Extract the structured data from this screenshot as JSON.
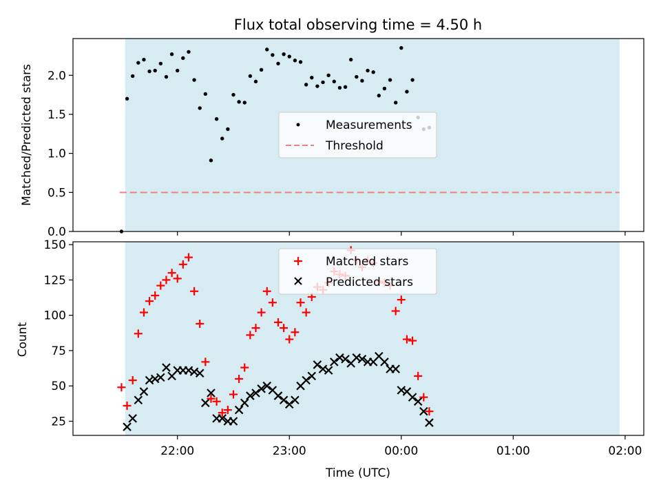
{
  "title": "Flux total observing time = 4.50 h",
  "chart_data": [
    {
      "type": "scatter",
      "panel": "top",
      "ylabel": "Matched/Predicted stars",
      "ylim": [
        0,
        2.47
      ],
      "yticks": [
        "0.0",
        "0.5",
        "1.0",
        "1.5",
        "2.0"
      ],
      "ytick_values": [
        0,
        0.5,
        1.0,
        1.5,
        2.0
      ],
      "grid": false,
      "legend_position": "center",
      "legend": [
        "Measurements",
        "Threshold"
      ],
      "shaded_span": {
        "start": "21:32",
        "end": "01:57",
        "color": "#add8e6"
      },
      "threshold": {
        "value": 0.5,
        "start": "21:29",
        "end": "01:57",
        "color": "#f08080"
      },
      "series": [
        {
          "name": "Measurements",
          "color": "#000000",
          "points": [
            [
              "21:30",
              0.0
            ],
            [
              "21:33",
              1.7
            ],
            [
              "21:36",
              1.99
            ],
            [
              "21:39",
              2.16
            ],
            [
              "21:42",
              2.2
            ],
            [
              "21:45",
              2.05
            ],
            [
              "21:48",
              2.06
            ],
            [
              "21:51",
              2.15
            ],
            [
              "21:54",
              1.98
            ],
            [
              "21:57",
              2.27
            ],
            [
              "22:00",
              2.06
            ],
            [
              "22:03",
              2.22
            ],
            [
              "22:06",
              2.3
            ],
            [
              "22:09",
              1.94
            ],
            [
              "22:12",
              1.58
            ],
            [
              "22:15",
              1.76
            ],
            [
              "22:18",
              0.91
            ],
            [
              "22:21",
              1.44
            ],
            [
              "22:24",
              1.19
            ],
            [
              "22:27",
              1.31
            ],
            [
              "22:30",
              1.75
            ],
            [
              "22:33",
              1.66
            ],
            [
              "22:36",
              1.65
            ],
            [
              "22:39",
              1.99
            ],
            [
              "22:42",
              1.92
            ],
            [
              "22:45",
              2.07
            ],
            [
              "22:48",
              2.33
            ],
            [
              "22:51",
              2.26
            ],
            [
              "22:54",
              2.15
            ],
            [
              "22:57",
              2.27
            ],
            [
              "23:00",
              2.24
            ],
            [
              "23:03",
              2.19
            ],
            [
              "23:06",
              2.17
            ],
            [
              "23:09",
              1.88
            ],
            [
              "23:12",
              1.97
            ],
            [
              "23:15",
              1.86
            ],
            [
              "23:18",
              1.91
            ],
            [
              "23:21",
              2.0
            ],
            [
              "23:24",
              1.92
            ],
            [
              "23:27",
              1.84
            ],
            [
              "23:30",
              1.85
            ],
            [
              "23:33",
              2.2
            ],
            [
              "23:36",
              1.98
            ],
            [
              "23:39",
              1.93
            ],
            [
              "23:42",
              2.06
            ],
            [
              "23:45",
              2.04
            ],
            [
              "23:48",
              1.74
            ],
            [
              "23:51",
              1.83
            ],
            [
              "23:54",
              1.94
            ],
            [
              "23:57",
              1.65
            ],
            [
              "00:00",
              2.35
            ],
            [
              "00:03",
              1.79
            ],
            [
              "00:06",
              1.94
            ],
            [
              "00:09",
              1.46
            ],
            [
              "00:12",
              1.31
            ],
            [
              "00:15",
              1.33
            ]
          ]
        }
      ]
    },
    {
      "type": "scatter",
      "panel": "bottom",
      "xlabel": "Time (UTC)",
      "ylabel": "Count",
      "ylim": [
        15,
        152
      ],
      "yticks": [
        "25",
        "50",
        "75",
        "100",
        "125",
        "150"
      ],
      "ytick_values": [
        25,
        50,
        75,
        100,
        125,
        150
      ],
      "xlim": [
        "21:04",
        "02:10"
      ],
      "xticks": [
        "22:00",
        "23:00",
        "00:00",
        "01:00",
        "02:00"
      ],
      "grid": false,
      "legend_position": "upper center",
      "shaded_span": {
        "start": "21:32",
        "end": "01:57",
        "color": "#add8e6"
      },
      "series": [
        {
          "name": "Matched stars",
          "marker": "plus",
          "color": "#ff0000",
          "points": [
            [
              "21:30",
              49
            ],
            [
              "21:33",
              36
            ],
            [
              "21:36",
              54
            ],
            [
              "21:39",
              87
            ],
            [
              "21:42",
              102
            ],
            [
              "21:45",
              110
            ],
            [
              "21:48",
              114
            ],
            [
              "21:51",
              121
            ],
            [
              "21:54",
              125
            ],
            [
              "21:57",
              130
            ],
            [
              "22:00",
              126
            ],
            [
              "22:03",
              136
            ],
            [
              "22:06",
              141
            ],
            [
              "22:09",
              117
            ],
            [
              "22:12",
              94
            ],
            [
              "22:15",
              67
            ],
            [
              "22:18",
              41
            ],
            [
              "22:21",
              39
            ],
            [
              "22:24",
              31
            ],
            [
              "22:27",
              33
            ],
            [
              "22:30",
              44
            ],
            [
              "22:33",
              55
            ],
            [
              "22:36",
              63
            ],
            [
              "22:39",
              86
            ],
            [
              "22:42",
              91
            ],
            [
              "22:45",
              102
            ],
            [
              "22:48",
              117
            ],
            [
              "22:51",
              109
            ],
            [
              "22:54",
              95
            ],
            [
              "22:57",
              91
            ],
            [
              "23:00",
              83
            ],
            [
              "23:03",
              88
            ],
            [
              "23:06",
              109
            ],
            [
              "23:09",
              102
            ],
            [
              "23:12",
              113
            ],
            [
              "23:15",
              120
            ],
            [
              "23:18",
              118
            ],
            [
              "23:21",
              123
            ],
            [
              "23:24",
              131
            ],
            [
              "23:27",
              129
            ],
            [
              "23:30",
              128
            ],
            [
              "23:33",
              146
            ],
            [
              "23:36",
              139
            ],
            [
              "23:39",
              134
            ],
            [
              "23:42",
              139
            ],
            [
              "23:45",
              137
            ],
            [
              "23:48",
              124
            ],
            [
              "23:51",
              123
            ],
            [
              "23:54",
              121
            ],
            [
              "23:57",
              103
            ],
            [
              "00:00",
              111
            ],
            [
              "00:03",
              83
            ],
            [
              "00:06",
              82
            ],
            [
              "00:09",
              57
            ],
            [
              "00:12",
              42
            ],
            [
              "00:15",
              32
            ]
          ]
        },
        {
          "name": "Predicted stars",
          "marker": "x",
          "color": "#000000",
          "points": [
            [
              "21:33",
              21
            ],
            [
              "21:36",
              27
            ],
            [
              "21:39",
              40
            ],
            [
              "21:42",
              46
            ],
            [
              "21:45",
              54
            ],
            [
              "21:48",
              55
            ],
            [
              "21:51",
              56
            ],
            [
              "21:54",
              63
            ],
            [
              "21:57",
              57
            ],
            [
              "22:00",
              61
            ],
            [
              "22:03",
              61
            ],
            [
              "22:06",
              61
            ],
            [
              "22:09",
              60
            ],
            [
              "22:12",
              59
            ],
            [
              "22:15",
              38
            ],
            [
              "22:18",
              45
            ],
            [
              "22:21",
              27
            ],
            [
              "22:24",
              27
            ],
            [
              "22:27",
              25
            ],
            [
              "22:30",
              25
            ],
            [
              "22:33",
              33
            ],
            [
              "22:36",
              38
            ],
            [
              "22:39",
              43
            ],
            [
              "22:42",
              45
            ],
            [
              "22:45",
              48
            ],
            [
              "22:48",
              50
            ],
            [
              "22:51",
              47
            ],
            [
              "22:54",
              43
            ],
            [
              "22:57",
              40
            ],
            [
              "23:00",
              37
            ],
            [
              "23:03",
              40
            ],
            [
              "23:06",
              50
            ],
            [
              "23:09",
              54
            ],
            [
              "23:12",
              57
            ],
            [
              "23:15",
              65
            ],
            [
              "23:18",
              62
            ],
            [
              "23:21",
              61
            ],
            [
              "23:24",
              67
            ],
            [
              "23:27",
              70
            ],
            [
              "23:30",
              69
            ],
            [
              "23:33",
              66
            ],
            [
              "23:36",
              70
            ],
            [
              "23:39",
              69
            ],
            [
              "23:42",
              67
            ],
            [
              "23:45",
              67
            ],
            [
              "23:48",
              71
            ],
            [
              "23:51",
              67
            ],
            [
              "23:54",
              62
            ],
            [
              "23:57",
              62
            ],
            [
              "00:00",
              47
            ],
            [
              "00:03",
              46
            ],
            [
              "00:06",
              42
            ],
            [
              "00:09",
              39
            ],
            [
              "00:12",
              32
            ],
            [
              "00:15",
              24
            ]
          ]
        }
      ]
    }
  ]
}
